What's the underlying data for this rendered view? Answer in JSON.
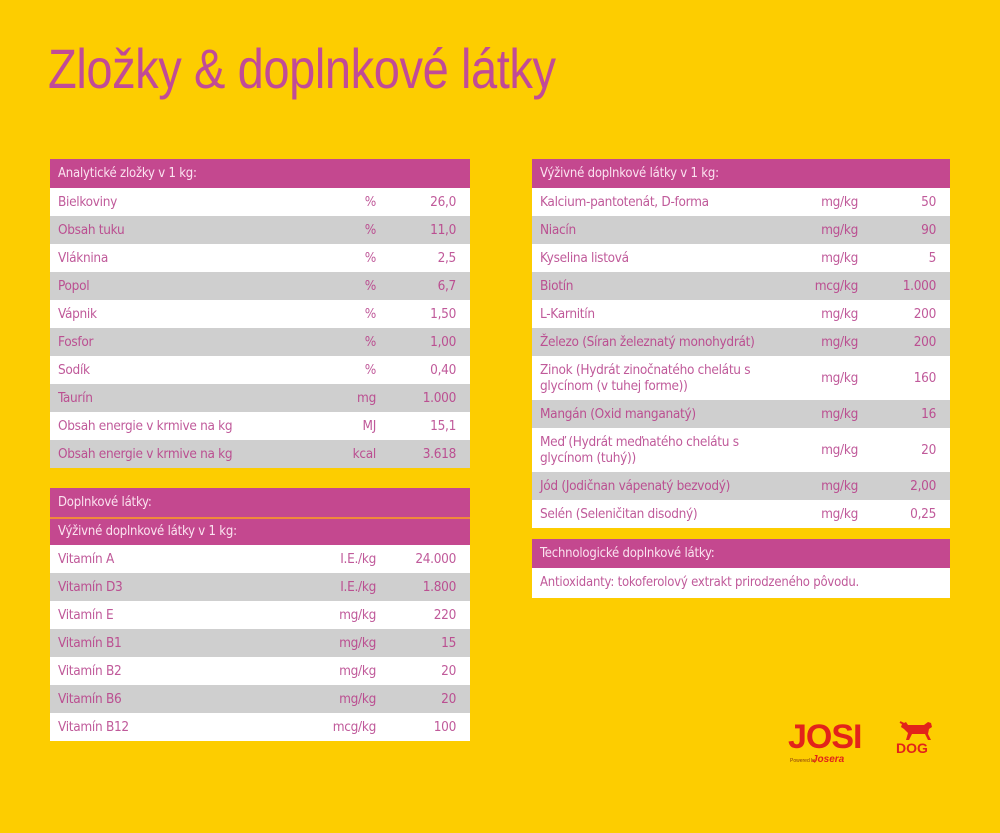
{
  "title": "Zložky & doplnkové látky",
  "analytical": {
    "header": "Analytické zložky v 1 kg:",
    "rows": [
      {
        "name": "Bielkoviny",
        "unit": "%",
        "value": "26,0"
      },
      {
        "name": "Obsah tuku",
        "unit": "%",
        "value": "11,0"
      },
      {
        "name": "Vláknina",
        "unit": "%",
        "value": "2,5"
      },
      {
        "name": "Popol",
        "unit": "%",
        "value": "6,7"
      },
      {
        "name": "Vápnik",
        "unit": "%",
        "value": "1,50"
      },
      {
        "name": "Fosfor",
        "unit": "%",
        "value": "1,00"
      },
      {
        "name": "Sodík",
        "unit": "%",
        "value": "0,40"
      },
      {
        "name": "Taurín",
        "unit": "mg",
        "value": "1.000"
      },
      {
        "name": "Obsah energie v krmive na kg",
        "unit": "MJ",
        "value": "15,1"
      },
      {
        "name": "Obsah energie v krmive na kg",
        "unit": "kcal",
        "value": "3.618"
      }
    ]
  },
  "additives": {
    "header": "Doplnkové látky:",
    "subheader": "Výživné doplnkové látky v 1 kg:",
    "rows": [
      {
        "name": "Vitamín A",
        "unit": "I.E./kg",
        "value": "24.000"
      },
      {
        "name": "Vitamín D3",
        "unit": "I.E./kg",
        "value": "1.800"
      },
      {
        "name": "Vitamín E",
        "unit": "mg/kg",
        "value": "220"
      },
      {
        "name": "Vitamín B1",
        "unit": "mg/kg",
        "value": "15"
      },
      {
        "name": "Vitamín B2",
        "unit": "mg/kg",
        "value": "20"
      },
      {
        "name": "Vitamín B6",
        "unit": "mg/kg",
        "value": "20"
      },
      {
        "name": "Vitamín B12",
        "unit": "mcg/kg",
        "value": "100"
      }
    ]
  },
  "nutritional": {
    "header": "Výživné doplnkové látky v 1 kg:",
    "rows": [
      {
        "name": "Kalcium-pantotenát, D-forma",
        "unit": "mg/kg",
        "value": "50"
      },
      {
        "name": "Niacín",
        "unit": "mg/kg",
        "value": "90"
      },
      {
        "name": "Kyselina listová",
        "unit": "mg/kg",
        "value": "5"
      },
      {
        "name": "Biotín",
        "unit": "mcg/kg",
        "value": "1.000"
      },
      {
        "name": "L-Karnitín",
        "unit": "mg/kg",
        "value": "200"
      },
      {
        "name": "Železo (Síran železnatý monohydrát)",
        "unit": "mg/kg",
        "value": "200"
      },
      {
        "name": "Zinok (Hydrát zinočnatého chelátu s glycínom (v tuhej forme))",
        "unit": "mg/kg",
        "value": "160"
      },
      {
        "name": "Mangán (Oxid manganatý)",
        "unit": "mg/kg",
        "value": "16"
      },
      {
        "name": "Meď (Hydrát meďnatého chelátu s glycínom (tuhý))",
        "unit": "mg/kg",
        "value": "20"
      },
      {
        "name": "Jód (Jodičnan vápenatý bezvodý)",
        "unit": "mg/kg",
        "value": "2,00"
      },
      {
        "name": "Selén (Seleničitan disodný)",
        "unit": "mg/kg",
        "value": "0,25"
      }
    ]
  },
  "technological": {
    "header": "Technologické doplnkové látky:",
    "text": "Antioxidanty: tokoferolový extrakt prirodzeného pôvodu."
  },
  "logo": {
    "brand": "JOSI",
    "sub": "DOG",
    "powered_by": "Powered by",
    "parent": "Josera"
  },
  "colors": {
    "background": "#fdcd00",
    "accent": "#c4488f",
    "row_alt": "#cfcfcf",
    "logo_red": "#e2231a"
  }
}
